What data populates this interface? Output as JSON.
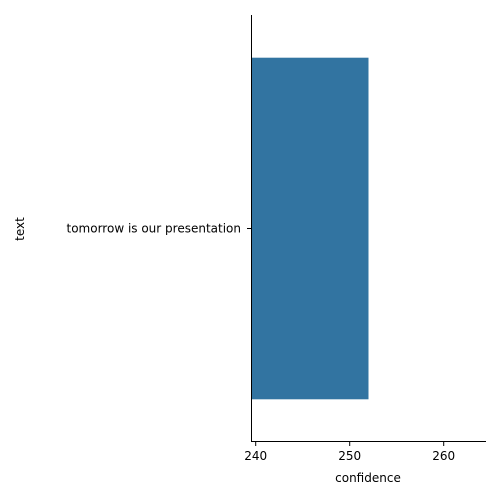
{
  "chart_data": {
    "type": "bar",
    "orientation": "horizontal",
    "categories": [
      "tomorrow is our presentation"
    ],
    "values": [
      252
    ],
    "xlabel": "confidence",
    "ylabel": "text",
    "xlim": [
      239.5,
      264.5
    ],
    "xticks": [
      240,
      250,
      260
    ],
    "grid": false,
    "bar_color": "#3274a1"
  }
}
